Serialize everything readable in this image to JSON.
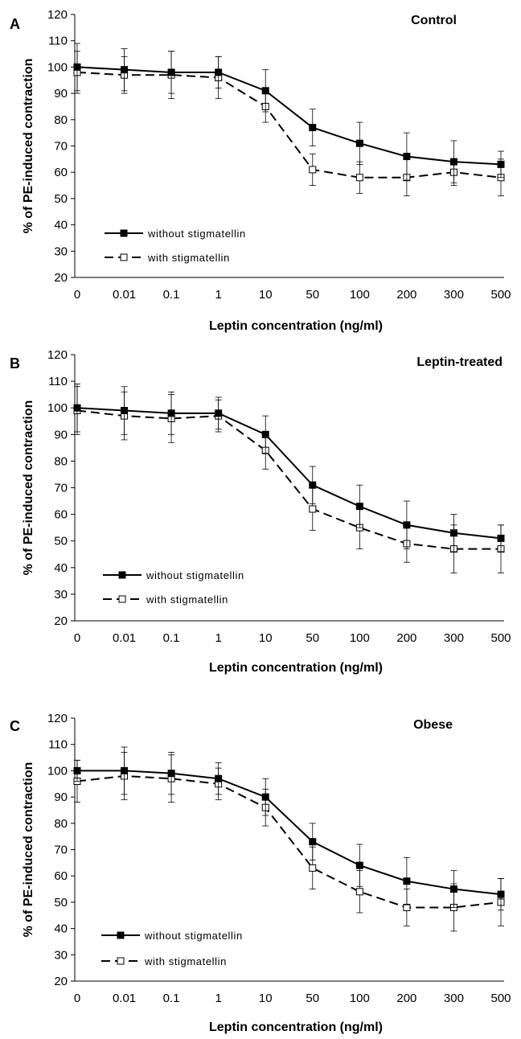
{
  "colors": {
    "axis": "#000000",
    "series": "#000000",
    "hollow_fill": "#ffffff"
  },
  "chart_data": [
    {
      "type": "line",
      "panel_letter": "A",
      "title": "Control",
      "xlabel": "Leptin concentration (ng/ml)",
      "ylabel": "% of PE-induced contraction",
      "categories": [
        "0",
        "0.01",
        "0.1",
        "1",
        "10",
        "50",
        "100",
        "200",
        "300",
        "500"
      ],
      "ylim": [
        20,
        120
      ],
      "yticks": [
        20,
        30,
        40,
        50,
        60,
        70,
        80,
        90,
        100,
        110,
        120
      ],
      "grid": false,
      "legend_position": "bottom-left",
      "series": [
        {
          "name": "without stigmatellin",
          "marker": "filled-square",
          "line": "solid",
          "values": [
            100,
            99,
            98,
            98,
            91,
            77,
            71,
            66,
            64,
            63
          ],
          "error": [
            9,
            8,
            8,
            6,
            8,
            7,
            8,
            9,
            8,
            5
          ]
        },
        {
          "name": "with stigmatellin",
          "marker": "open-square",
          "line": "dashed",
          "values": [
            98,
            97,
            97,
            96,
            85,
            61,
            58,
            58,
            60,
            58
          ],
          "error": [
            8,
            7,
            9,
            8,
            6,
            6,
            6,
            7,
            5,
            7
          ]
        }
      ]
    },
    {
      "type": "line",
      "panel_letter": "B",
      "title": "Leptin-treated",
      "xlabel": "Leptin concentration (ng/ml)",
      "ylabel": "% of PE-induced contraction",
      "categories": [
        "0",
        "0.01",
        "0.1",
        "1",
        "10",
        "50",
        "100",
        "200",
        "300",
        "500"
      ],
      "ylim": [
        20,
        120
      ],
      "yticks": [
        20,
        30,
        40,
        50,
        60,
        70,
        80,
        90,
        100,
        110,
        120
      ],
      "grid": false,
      "legend_position": "bottom-left",
      "series": [
        {
          "name": "without stigmatellin",
          "marker": "filled-square",
          "line": "solid",
          "values": [
            100,
            99,
            98,
            98,
            90,
            71,
            63,
            56,
            53,
            51
          ],
          "error": [
            9,
            9,
            8,
            6,
            7,
            7,
            8,
            9,
            7,
            5
          ]
        },
        {
          "name": "with stigmatellin",
          "marker": "open-square",
          "line": "dashed",
          "values": [
            99,
            97,
            96,
            97,
            84,
            62,
            55,
            49,
            47,
            47
          ],
          "error": [
            9,
            9,
            9,
            6,
            7,
            8,
            8,
            7,
            9,
            9
          ]
        }
      ]
    },
    {
      "type": "line",
      "panel_letter": "C",
      "title": "Obese",
      "xlabel": "Leptin concentration (ng/ml)",
      "ylabel": "% of PE-induced contraction",
      "categories": [
        "0",
        "0.01",
        "0.1",
        "1",
        "10",
        "50",
        "100",
        "200",
        "300",
        "500"
      ],
      "ylim": [
        20,
        120
      ],
      "yticks": [
        20,
        30,
        40,
        50,
        60,
        70,
        80,
        90,
        100,
        110,
        120
      ],
      "grid": false,
      "legend_position": "bottom-left",
      "series": [
        {
          "name": "without stigmatellin",
          "marker": "filled-square",
          "line": "solid",
          "values": [
            100,
            100,
            99,
            97,
            90,
            73,
            64,
            58,
            55,
            53
          ],
          "error": [
            4,
            9,
            8,
            6,
            7,
            7,
            8,
            9,
            7,
            6
          ]
        },
        {
          "name": "with stigmatellin",
          "marker": "open-square",
          "line": "dashed",
          "values": [
            96,
            98,
            97,
            95,
            86,
            63,
            54,
            48,
            48,
            50
          ],
          "error": [
            8,
            9,
            9,
            6,
            7,
            8,
            8,
            7,
            9,
            9
          ]
        }
      ]
    }
  ]
}
